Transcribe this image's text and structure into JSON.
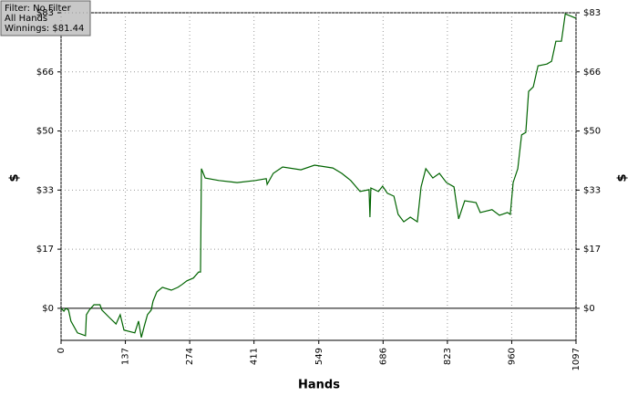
{
  "chart_data": {
    "type": "line",
    "annotations": [
      "Filter: No Filter",
      "All Hands",
      "Winnings: $81.44"
    ],
    "x_label": "Hands",
    "y_label": "$",
    "x": [
      0,
      6,
      10,
      16,
      21,
      35,
      52,
      54,
      60,
      70,
      83,
      87,
      103,
      117,
      126,
      134,
      157,
      165,
      171,
      177,
      184,
      192,
      196,
      204,
      216,
      235,
      249,
      258,
      268,
      282,
      293,
      297,
      299,
      307,
      336,
      375,
      414,
      437,
      439,
      452,
      472,
      511,
      540,
      579,
      598,
      617,
      637,
      656,
      658,
      660,
      676,
      685,
      695,
      709,
      718,
      730,
      744,
      759,
      767,
      777,
      792,
      806,
      821,
      837,
      847,
      860,
      884,
      893,
      918,
      934,
      951,
      957,
      963,
      973,
      981,
      990,
      996,
      1006,
      1016,
      1035,
      1045,
      1054,
      1066,
      1074,
      1089,
      1097
    ],
    "values": [
      0,
      -0.8,
      0,
      -0.5,
      -3.6,
      -6.9,
      -7.7,
      -1.8,
      -0.5,
      1,
      1,
      -0.5,
      -2.6,
      -4.4,
      -1.8,
      -6.1,
      -6.9,
      -3.6,
      -8.2,
      -5.1,
      -1.8,
      -0.5,
      2,
      4.6,
      5.9,
      5.1,
      5.9,
      6.7,
      7.7,
      8.5,
      10.2,
      10.2,
      39.2,
      36.6,
      35.9,
      35.3,
      35.9,
      36.4,
      34.8,
      37.9,
      39.7,
      38.9,
      40.2,
      39.4,
      37.9,
      35.9,
      32.8,
      33.3,
      25.6,
      33.8,
      32.8,
      34.3,
      32.3,
      31.5,
      26.4,
      24.3,
      25.6,
      24.3,
      34.1,
      39.2,
      36.6,
      37.9,
      35.3,
      34.1,
      25.1,
      30.2,
      29.7,
      26.9,
      27.7,
      26.1,
      26.9,
      26.4,
      35.3,
      39.2,
      48.7,
      49.4,
      60.9,
      62.2,
      68.1,
      68.6,
      69.4,
      75,
      75,
      82.7,
      81.9,
      81.44
    ],
    "color": "#006400",
    "xlim": [
      0,
      1097
    ],
    "xticks": [
      0,
      137,
      274,
      411,
      549,
      686,
      823,
      960,
      1097
    ],
    "ylim": [
      -9,
      83
    ],
    "yticks": [
      {
        "value": 0,
        "label": "$0"
      },
      {
        "value": 16.6,
        "label": "$17"
      },
      {
        "value": 33.2,
        "label": "$33"
      },
      {
        "value": 49.8,
        "label": "$50"
      },
      {
        "value": 66.4,
        "label": "$66"
      },
      {
        "value": 83,
        "label": "$83"
      }
    ],
    "grid": true
  }
}
